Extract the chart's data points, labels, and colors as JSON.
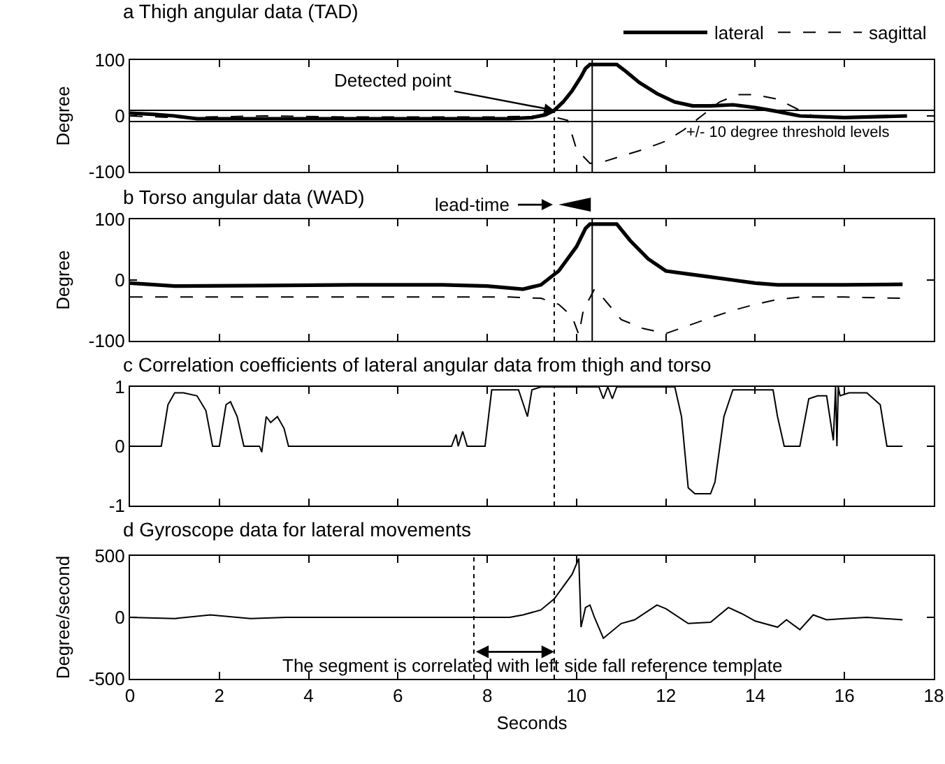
{
  "chart_data": [
    {
      "type": "line",
      "title": "a Thigh angular data (TAD)",
      "ylabel": "Degree",
      "xlim": [
        0,
        18
      ],
      "xticks": [
        0,
        2,
        4,
        6,
        8,
        10,
        12,
        14,
        16,
        18
      ],
      "ylim": [
        -100,
        100
      ],
      "yticks": [
        -100,
        0,
        100
      ],
      "tick_labels": "y",
      "legend": "top right",
      "series": [
        {
          "name": "lateral",
          "color": "#000000",
          "line_style": "solid",
          "x": [
            0,
            0.5,
            1,
            1.5,
            3,
            5,
            7,
            8.5,
            9,
            9.3,
            9.5,
            9.7,
            9.9,
            10.1,
            10.2,
            10.3,
            10.9,
            11.1,
            11.4,
            11.8,
            12.2,
            12.6,
            13,
            13.5,
            14,
            14.5,
            15,
            16,
            17.4
          ],
          "values": [
            5,
            3,
            0,
            -5,
            -5,
            -5,
            -5,
            -5,
            -3,
            2,
            10,
            25,
            45,
            70,
            85,
            92,
            92,
            80,
            60,
            40,
            25,
            18,
            18,
            20,
            15,
            8,
            0,
            -3,
            0
          ]
        },
        {
          "name": "sagittal",
          "color": "#000000",
          "line_style": "dashed",
          "x": [
            0,
            1,
            3,
            5,
            8,
            9.3,
            9.5,
            9.8,
            10,
            10.3,
            10.6,
            11,
            11.5,
            12,
            12.4,
            12.8,
            13.2,
            13.6,
            14,
            14.5,
            15,
            15.3,
            16,
            17.4
          ],
          "values": [
            0,
            -3,
            0,
            -2,
            -2,
            0,
            -2,
            -8,
            -60,
            -85,
            -82,
            -72,
            -60,
            -45,
            -25,
            0,
            25,
            38,
            38,
            30,
            10,
            0,
            -2,
            0
          ]
        }
      ],
      "ref_lines": [
        {
          "axis": "y",
          "value": 10,
          "line_style": "solid"
        },
        {
          "axis": "y",
          "value": -10,
          "line_style": "solid"
        },
        {
          "axis": "x",
          "value": 9.5,
          "line_style": "dotted"
        },
        {
          "axis": "x",
          "value": 10.35,
          "line_style": "solid"
        }
      ],
      "annotations": [
        {
          "text": "Detected point",
          "x": 9.5,
          "y": 10
        },
        {
          "text": "+/- 10 degree threshold levels",
          "x": 12.4,
          "y": -10
        }
      ]
    },
    {
      "type": "line",
      "title": "b Torso angular data (WAD)",
      "ylabel": "Degree",
      "xlim": [
        0,
        18
      ],
      "xticks": [
        0,
        2,
        4,
        6,
        8,
        10,
        12,
        14,
        16,
        18
      ],
      "ylim": [
        -100,
        100
      ],
      "yticks": [
        -100,
        0,
        100
      ],
      "tick_labels": "y",
      "series": [
        {
          "color": "#000000",
          "line_style": "solid",
          "x": [
            0,
            1,
            3,
            5,
            7,
            8,
            8.8,
            9.2,
            9.6,
            10,
            10.2,
            10.3,
            10.9,
            11.2,
            11.6,
            12,
            12.5,
            13,
            13.5,
            14,
            14.5,
            15,
            16,
            17.3
          ],
          "values": [
            -5,
            -10,
            -9,
            -8,
            -8,
            -10,
            -15,
            -8,
            15,
            55,
            85,
            92,
            92,
            65,
            35,
            15,
            10,
            5,
            0,
            -5,
            -8,
            -8,
            -8,
            -7
          ]
        },
        {
          "color": "#000000",
          "line_style": "dashed",
          "x": [
            0,
            4,
            8.5,
            9.2,
            9.6,
            9.9,
            10.05,
            10.15,
            10.4,
            10.6,
            11,
            11.5,
            12,
            12.5,
            13,
            13.5,
            14,
            14.5,
            15,
            16,
            17.3
          ],
          "values": [
            -28,
            -28,
            -28,
            -30,
            -40,
            -60,
            -90,
            -50,
            -15,
            -30,
            -65,
            -80,
            -88,
            -75,
            -62,
            -50,
            -40,
            -32,
            -28,
            -28,
            -30
          ]
        }
      ],
      "ref_lines": [
        {
          "axis": "x",
          "value": 9.5,
          "line_style": "dotted"
        },
        {
          "axis": "x",
          "value": 10.35,
          "line_style": "solid"
        }
      ],
      "annotations": [
        "lead-time"
      ]
    },
    {
      "type": "line",
      "title": "c Correlation coefficients of lateral angular data from thigh and torso",
      "xlim": [
        0,
        18
      ],
      "xticks": [
        0,
        2,
        4,
        6,
        8,
        10,
        12,
        14,
        16,
        18
      ],
      "ylim": [
        -1,
        1
      ],
      "yticks": [
        -1,
        0,
        1
      ],
      "tick_labels": "y",
      "series": [
        {
          "color": "#000000",
          "line_style": "solid",
          "x": [
            0,
            0.7,
            0.85,
            1.0,
            1.2,
            1.5,
            1.7,
            1.85,
            2.0,
            2.15,
            2.25,
            2.4,
            2.55,
            2.9,
            2.95,
            3.05,
            3.15,
            3.3,
            3.45,
            3.55,
            3.7,
            7.2,
            7.3,
            7.35,
            7.45,
            7.55,
            7.65,
            7.95,
            8.1,
            8.3,
            8.7,
            8.9,
            9.0,
            9.2,
            10.5,
            10.6,
            10.7,
            10.8,
            10.9,
            11.0,
            12.2,
            12.35,
            12.5,
            12.65,
            13.0,
            13.1,
            13.3,
            13.5,
            14.4,
            14.5,
            14.65,
            15.0,
            15.2,
            15.4,
            15.6,
            15.75,
            15.8,
            15.83,
            15.86,
            15.9,
            16.1,
            16.5,
            16.8,
            16.95,
            17.1,
            17.3
          ],
          "values": [
            0,
            0,
            0.7,
            0.9,
            0.9,
            0.85,
            0.6,
            0,
            0,
            0.7,
            0.75,
            0.5,
            0,
            0,
            -0.1,
            0.5,
            0.4,
            0.5,
            0.3,
            0,
            0,
            0,
            0.2,
            0,
            0.25,
            0,
            0,
            0,
            0.95,
            0.95,
            0.95,
            0.5,
            0.95,
            1,
            1,
            0.8,
            1,
            0.8,
            1,
            1,
            1,
            0.5,
            -0.7,
            -0.8,
            -0.8,
            -0.6,
            0.5,
            0.95,
            0.95,
            0.5,
            0,
            0,
            0.8,
            0.85,
            0.85,
            0.1,
            1,
            0,
            1,
            0.85,
            0.9,
            0.9,
            0.7,
            0,
            0,
            0
          ]
        }
      ],
      "ref_lines": [
        {
          "axis": "x",
          "value": 9.5,
          "line_style": "dotted"
        }
      ]
    },
    {
      "type": "line",
      "title": "d Gyroscope data for lateral movements",
      "xlabel": "Seconds",
      "ylabel": "Degree/second",
      "xlim": [
        0,
        18
      ],
      "xticks": [
        0,
        2,
        4,
        6,
        8,
        10,
        12,
        14,
        16,
        18
      ],
      "ylim": [
        -500,
        500
      ],
      "yticks": [
        -500,
        0,
        500
      ],
      "series": [
        {
          "color": "#000000",
          "line_style": "solid",
          "x": [
            0,
            1,
            1.8,
            2.7,
            3.5,
            5,
            7,
            8.5,
            8.8,
            9.2,
            9.5,
            9.9,
            10.05,
            10.1,
            10.2,
            10.3,
            10.4,
            10.6,
            11,
            11.3,
            11.8,
            12,
            12.5,
            13,
            13.4,
            13.7,
            14,
            14.5,
            14.7,
            15,
            15.3,
            15.6,
            16,
            16.5,
            17.3
          ],
          "values": [
            0,
            -10,
            20,
            -10,
            0,
            0,
            0,
            0,
            20,
            60,
            150,
            350,
            480,
            -80,
            80,
            100,
            0,
            -170,
            -50,
            -20,
            100,
            70,
            -50,
            -40,
            80,
            30,
            -30,
            -80,
            -20,
            -100,
            20,
            -20,
            -10,
            0,
            -20
          ]
        }
      ],
      "ref_lines": [
        {
          "axis": "x",
          "value": 7.7,
          "line_style": "dotted"
        },
        {
          "axis": "x",
          "value": 9.5,
          "line_style": "dotted"
        }
      ],
      "annotations": [
        "The segment is correlated with left side fall reference template"
      ]
    }
  ]
}
